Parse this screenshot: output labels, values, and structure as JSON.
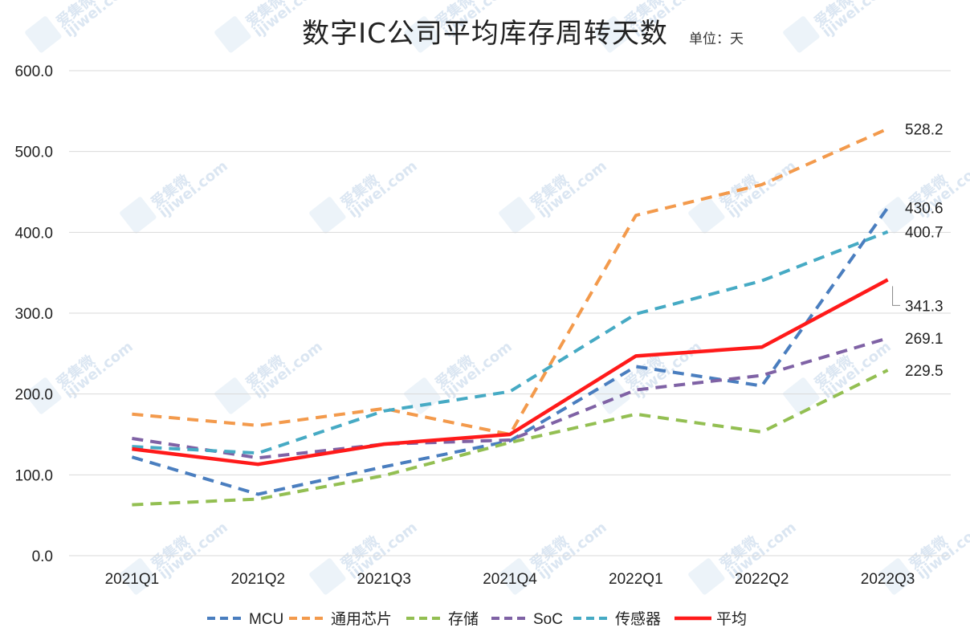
{
  "header": {
    "title": "数字IC公司平均库存周转天数",
    "unit": "单位：天"
  },
  "colors": {
    "MCU": "#4a7ebf",
    "通用芯片": "#f39a4c",
    "存储": "#93bf52",
    "SoC": "#7f62a5",
    "传感器": "#46aac4",
    "平均": "#ff1a1a"
  },
  "watermark": {
    "text": "爱集微",
    "domain": "ijiwei.com"
  },
  "chart_data": {
    "type": "line",
    "title": "数字IC公司平均库存周转天数",
    "unit": "单位：天",
    "categories": [
      "2021Q1",
      "2021Q2",
      "2021Q3",
      "2021Q4",
      "2022Q1",
      "2022Q2",
      "2022Q3"
    ],
    "ylim": [
      0,
      600
    ],
    "yticks": [
      "0.0",
      "100.0",
      "200.0",
      "300.0",
      "400.0",
      "500.0",
      "600.0"
    ],
    "grid": true,
    "legend_position": "bottom",
    "series": [
      {
        "name": "MCU",
        "style": "dashed",
        "values": [
          122,
          76,
          110,
          142,
          234,
          210,
          430.6
        ],
        "end_label": "430.6"
      },
      {
        "name": "通用芯片",
        "style": "dashed",
        "values": [
          175,
          161,
          182,
          150,
          421,
          459,
          528.2
        ],
        "end_label": "528.2"
      },
      {
        "name": "存储",
        "style": "dashed",
        "values": [
          63,
          70,
          99,
          140,
          175,
          153,
          229.5
        ],
        "end_label": "229.5"
      },
      {
        "name": "SoC",
        "style": "dashed",
        "values": [
          145,
          121,
          138,
          143,
          205,
          223,
          269.1
        ],
        "end_label": "269.1"
      },
      {
        "name": "传感器",
        "style": "dashed",
        "values": [
          135,
          127,
          179,
          203,
          299,
          340,
          400.7
        ],
        "end_label": "400.7"
      },
      {
        "name": "平均",
        "style": "solid",
        "values": [
          132,
          113,
          138,
          150,
          247,
          258,
          341.3
        ],
        "end_label": "341.3"
      }
    ]
  }
}
